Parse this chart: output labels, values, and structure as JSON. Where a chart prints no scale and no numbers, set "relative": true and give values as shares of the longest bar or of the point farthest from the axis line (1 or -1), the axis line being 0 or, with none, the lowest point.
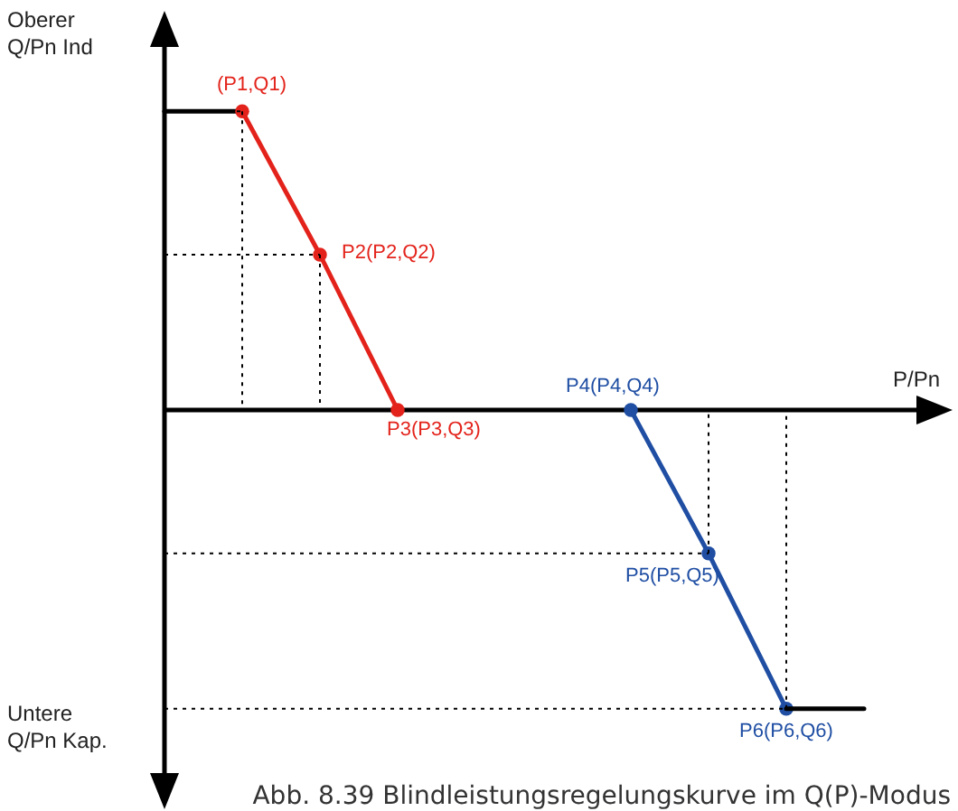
{
  "chart_data": {
    "type": "line",
    "relative": true,
    "xlabel": "P/Pn",
    "ylabel": "Oberer\nQ/Pn Ind",
    "categories": [
      null,
      null,
      null,
      null,
      null,
      null,
      null,
      null,
      null,
      null
    ],
    "series": [
      {
        "color": "#000000",
        "values": [
          1,
          1,
          null,
          null,
          null,
          null,
          null,
          null,
          null,
          null
        ],
        "marker": "none"
      },
      {
        "color": "#e3231b",
        "values": [
          null,
          1,
          0.52,
          0,
          null,
          null,
          null,
          null,
          null,
          null
        ],
        "marker": "circle"
      },
      {
        "color": "#1f4ea3",
        "values": [
          null,
          null,
          null,
          null,
          null,
          null,
          0,
          -0.48,
          -1,
          null
        ],
        "marker": "circle"
      },
      {
        "color": "#000000",
        "values": [
          null,
          null,
          null,
          null,
          null,
          null,
          null,
          null,
          -1,
          -1
        ],
        "marker": "none"
      }
    ],
    "annotations": [
      "(P1,Q1)",
      "P2(P2,Q2)",
      "P3(P3,Q3)",
      "P4(P4,Q4)",
      "P5(P5,Q5)",
      "P6(P6,Q6)",
      "Untere\nQ/Pn Kap.",
      "Abb. 8.39 Blindleistungsregelungskurve im Q(P)-Modus"
    ]
  }
}
